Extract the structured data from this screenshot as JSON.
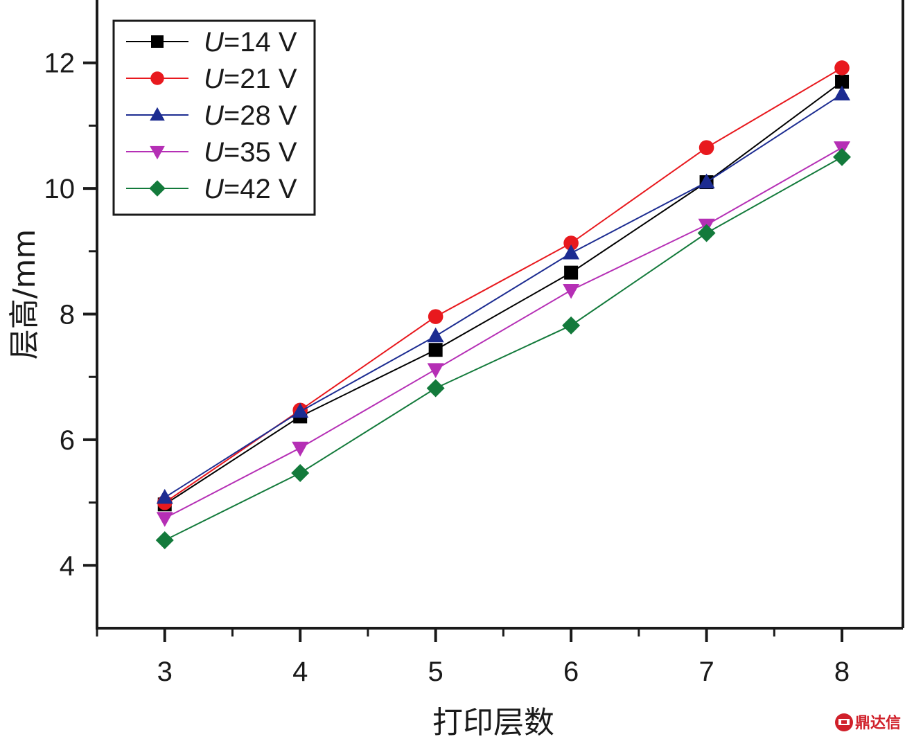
{
  "chart_data": {
    "type": "line",
    "title": "",
    "xlabel": "打印层数",
    "ylabel": "层高/mm",
    "x": [
      3,
      4,
      5,
      6,
      7,
      8
    ],
    "xticks": [
      "3",
      "4",
      "5",
      "6",
      "7",
      "8"
    ],
    "yticks": [
      "4",
      "6",
      "8",
      "10",
      "12"
    ],
    "xlim": [
      2.5,
      8.45
    ],
    "ylim": [
      3,
      13
    ],
    "grid": false,
    "legend_position": "top-left",
    "series": [
      {
        "name": "U=14 V",
        "symbol": "U",
        "value_label": "=14 V",
        "color": "#000000",
        "marker": "square",
        "values": [
          4.97,
          6.37,
          7.43,
          8.66,
          10.1,
          11.7
        ]
      },
      {
        "name": "U=21 V",
        "symbol": "U",
        "value_label": "=21 V",
        "color": "#e8191e",
        "marker": "circle",
        "values": [
          5.0,
          6.47,
          7.96,
          9.13,
          10.65,
          11.92
        ]
      },
      {
        "name": "U=28 V",
        "symbol": "U",
        "value_label": "=28 V",
        "color": "#1c2c91",
        "marker": "triangle-up",
        "values": [
          5.08,
          6.45,
          7.65,
          8.97,
          10.1,
          11.5
        ]
      },
      {
        "name": "U=35 V",
        "symbol": "U",
        "value_label": "=35 V",
        "color": "#b52fb5",
        "marker": "triangle-down",
        "values": [
          4.75,
          5.87,
          7.12,
          8.38,
          9.42,
          10.65
        ]
      },
      {
        "name": "U=42 V",
        "symbol": "U",
        "value_label": "=42 V",
        "color": "#137a3b",
        "marker": "diamond",
        "values": [
          4.4,
          5.47,
          6.82,
          7.82,
          9.29,
          10.5
        ]
      }
    ]
  },
  "watermark": {
    "icon": "dingdaxin-logo-icon",
    "text": "鼎达信",
    "color": "#d0202a"
  }
}
